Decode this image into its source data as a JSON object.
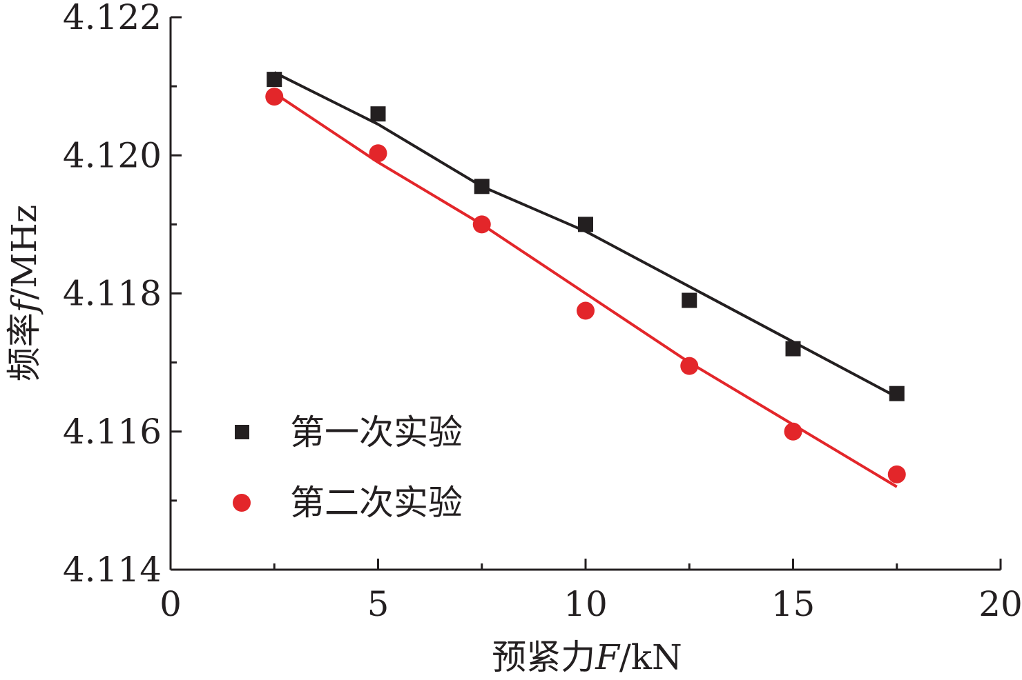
{
  "chart_data": {
    "type": "scatter",
    "x": [
      2.5,
      5,
      7.5,
      10,
      12.5,
      15,
      17.5
    ],
    "series": [
      {
        "name": "第一次实验",
        "marker": "square",
        "color": "#231f20",
        "values": [
          4.1211,
          4.1206,
          4.11955,
          4.119,
          4.1179,
          4.1172,
          4.11655
        ],
        "fit_line": [
          4.1212,
          4.12045,
          4.11955,
          4.1189,
          4.1181,
          4.1173,
          4.1165
        ]
      },
      {
        "name": "第二次实验",
        "marker": "circle",
        "color": "#e3262a",
        "values": [
          4.12085,
          4.12003,
          4.119,
          4.11775,
          4.11695,
          4.116,
          4.11538
        ],
        "fit_line": [
          4.1209,
          4.1199,
          4.119,
          4.118,
          4.117,
          4.1161,
          4.1152
        ]
      }
    ],
    "xlabel": {
      "prefix": "预紧力",
      "var": "F",
      "unit": "/kN"
    },
    "ylabel": {
      "prefix": "频率",
      "var": "f",
      "unit": "/MHz"
    },
    "xlim": [
      0,
      20
    ],
    "ylim": [
      4.114,
      4.122
    ],
    "xticks": [
      "0",
      "5",
      "10",
      "15",
      "20"
    ],
    "yticks": [
      "4.114",
      "4.116",
      "4.118",
      "4.120",
      "4.122"
    ],
    "grid": false,
    "legend_position": "bottom-left"
  }
}
